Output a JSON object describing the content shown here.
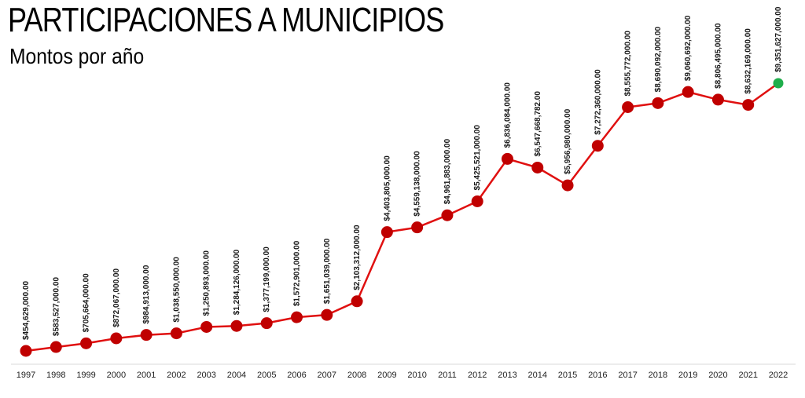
{
  "header": {
    "title": "PARTICIPACIONES A MUNICIPIOS",
    "subtitle": "Montos por año"
  },
  "chart_data": {
    "type": "line",
    "title": "PARTICIPACIONES A MUNICIPIOS",
    "subtitle": "Montos por año",
    "xlabel": "",
    "ylabel": "",
    "categories": [
      "1997",
      "1998",
      "1999",
      "2000",
      "2001",
      "2002",
      "2003",
      "2004",
      "2005",
      "2006",
      "2007",
      "2008",
      "2009",
      "2010",
      "2011",
      "2012",
      "2013",
      "2014",
      "2015",
      "2016",
      "2017",
      "2018",
      "2019",
      "2020",
      "2021",
      "2022"
    ],
    "values": [
      454629000,
      583527000,
      705664000,
      872067000,
      984913000,
      1038550000,
      1250893000,
      1284126000,
      1377199000,
      1572901000,
      1651039000,
      2103312000,
      4403805000,
      4559138000,
      4961883000,
      5425521000,
      6836084000,
      6547668782,
      5956980000,
      7272360000,
      8555772000,
      8690092000,
      9060692000,
      8806495000,
      8632169000,
      9351627000
    ],
    "labels": [
      "$454,629,000.00",
      "$583,527,000.00",
      "$705,664,000.00",
      "$872,067,000.00",
      "$984,913,000.00",
      "$1,038,550,000.00",
      "$1,250,893,000.00",
      "$1,284,126,000.00",
      "$1,377,199,000.00",
      "$1,572,901,000.00",
      "$1,651,039,000.00",
      "$2,103,312,000.00",
      "$4,403,805,000.00",
      "$4,559,138,000.00",
      "$4,961,883,000.00",
      "$5,425,521,000.00",
      "$6,836,084,000.00",
      "$6,547,668,782.00",
      "$5,956,980,000.00",
      "$7,272,360,000.00",
      "$8,555,772,000.00",
      "$8,690,092,000.00",
      "$9,060,692,000.00",
      "$8,806,495,000.00",
      "$8,632,169,000.00",
      "$9,351,627,000.00"
    ],
    "grid": false,
    "legend": "none",
    "colors": {
      "line": "#e01010",
      "marker": "#c00000",
      "highlight": "#1fae4b"
    }
  }
}
